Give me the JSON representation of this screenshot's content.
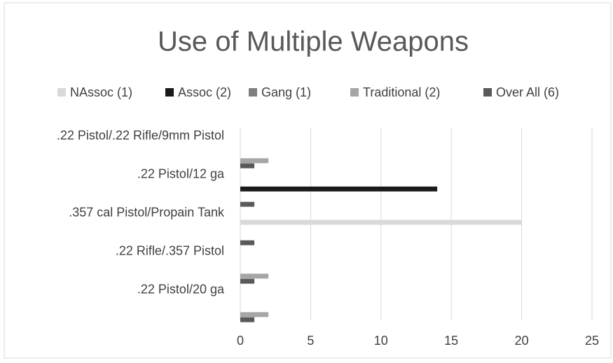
{
  "chart_data": {
    "type": "hbar",
    "title": "Use of Multiple Weapons",
    "categories": [
      ".22 Pistol/.22 Rifle/9mm Pistol",
      ".22 Pistol/12 ga",
      ".357 cal Pistol/Propain Tank",
      ".22 Rifle/.357 Pistol",
      ".22 Pistol/20 ga"
    ],
    "series": [
      {
        "name": "NAssoc (1)",
        "color": "#d9d9d9",
        "values": [
          0,
          0,
          20,
          0,
          0
        ]
      },
      {
        "name": "Assoc (2)",
        "color": "#1a1a1a",
        "values": [
          0,
          14,
          0,
          0,
          0
        ]
      },
      {
        "name": "Gang (1)",
        "color": "#7f7f7f",
        "values": [
          0,
          0,
          0,
          0,
          0
        ]
      },
      {
        "name": "Traditional (2)",
        "color": "#a6a6a6",
        "values": [
          2,
          0,
          0,
          2,
          2
        ]
      },
      {
        "name": "Over All (6)",
        "color": "#595959",
        "values": [
          1,
          1,
          1,
          1,
          1
        ]
      }
    ],
    "xlim": [
      0,
      25
    ],
    "xticks": [
      0,
      5,
      10,
      15,
      20,
      25
    ],
    "grid": true,
    "legend": "top"
  }
}
